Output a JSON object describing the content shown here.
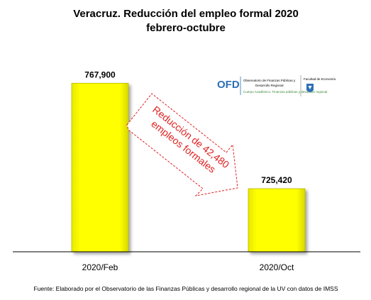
{
  "chart_data": {
    "type": "bar",
    "title_line1": "Veracruz. Reducción del empleo formal 2020",
    "title_line2": "febrero-octubre",
    "categories": [
      "2020/Feb",
      "2020/Oct"
    ],
    "values": [
      767900,
      725420
    ],
    "value_labels": [
      "767,900",
      "725,420"
    ],
    "ylim": [
      700000,
      770000
    ],
    "grid": false,
    "legend": "none",
    "annotation_line1": "Reducción de 42,480",
    "annotation_line2": "empleos formales",
    "source": "Fuente: Elaborado por el Observatorio de las Finanzas Públicas y desarrollo regional de la UV con datos de IMSS",
    "colors": {
      "bar": "#ffff00",
      "bar_edge": "#b8b800",
      "annotation": "#e02020"
    }
  },
  "logo": {
    "acronym": "OFD",
    "name_line1": "Observatorio de Finanzas Públicas y",
    "name_line2": "Desarrollo Regional",
    "tagline": "Cuerpo Académico. Finanzas públicas y desarrollo regional",
    "unit_text": "Facultad de Economía",
    "colors": {
      "acronym": "#2e6fb5",
      "rule": "#2e6fb5",
      "tagline": "#3a8a3a"
    }
  }
}
